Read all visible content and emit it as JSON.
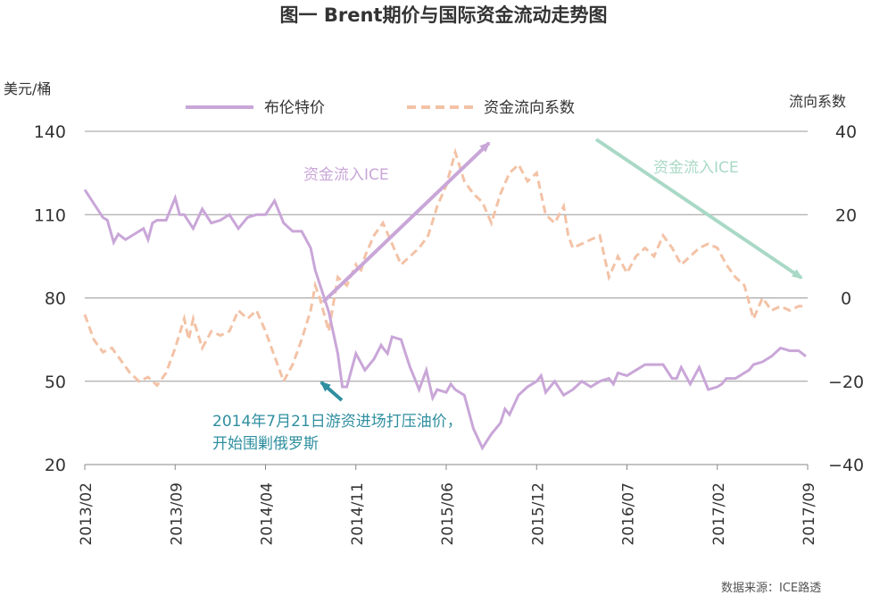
{
  "chart_data": {
    "type": "line",
    "title": "图一 Brent期价与国际资金流动走势图",
    "ylabel_left": "美元/桶",
    "ylabel_right": "流向系数",
    "ylim_left": [
      20,
      140
    ],
    "ylim_right": [
      -40,
      40
    ],
    "y_ticks_left": [
      140,
      110,
      80,
      50,
      20
    ],
    "y_ticks_right": [
      40,
      20,
      0,
      -20,
      -40
    ],
    "x_tick_labels": [
      "2013/02",
      "2013/09",
      "2014/04",
      "2014/11",
      "2015/06",
      "2015/12",
      "2016/07",
      "2017/02",
      "2017/09"
    ],
    "x_index_range": [
      0,
      8
    ],
    "grid": "horizontal",
    "legend": {
      "placement": "top",
      "entries": [
        "布伦特价",
        "资金流向系数"
      ]
    },
    "series": [
      {
        "name": "布伦特价",
        "axis": "left",
        "color": "#c9a6d8",
        "style": "solid",
        "x": [
          0.0,
          0.1,
          0.2,
          0.25,
          0.32,
          0.37,
          0.45,
          0.55,
          0.65,
          0.7,
          0.75,
          0.8,
          0.9,
          1.0,
          1.05,
          1.1,
          1.2,
          1.3,
          1.4,
          1.5,
          1.6,
          1.7,
          1.8,
          1.9,
          2.0,
          2.1,
          2.2,
          2.3,
          2.4,
          2.5,
          2.55,
          2.6,
          2.7,
          2.8,
          2.85,
          2.9,
          3.0,
          3.1,
          3.2,
          3.28,
          3.3,
          3.35,
          3.4,
          3.5,
          3.55,
          3.6,
          3.65,
          3.7,
          3.78,
          3.85,
          3.9,
          4.0,
          4.05,
          4.1,
          4.2,
          4.3,
          4.4,
          4.5,
          4.6,
          4.65,
          4.7,
          4.8,
          4.9,
          5.0,
          5.05,
          5.1,
          5.2,
          5.3,
          5.4,
          5.5,
          5.6,
          5.7,
          5.8,
          5.85,
          5.9,
          6.0,
          6.1,
          6.2,
          6.3,
          6.35,
          6.4,
          6.5,
          6.55,
          6.6,
          6.7,
          6.8,
          6.9,
          7.0,
          7.05,
          7.1,
          7.2,
          7.3,
          7.35,
          7.4,
          7.5,
          7.6,
          7.7,
          7.8,
          7.9,
          7.98
        ],
        "values": [
          119,
          114,
          109,
          108,
          100,
          103,
          101,
          103,
          105,
          101,
          107,
          108,
          108,
          116,
          110,
          110,
          105,
          112,
          107,
          108,
          110,
          105,
          109,
          110,
          110,
          115,
          107,
          104,
          104,
          98,
          90,
          85,
          75,
          60,
          48,
          48,
          60,
          54,
          58,
          63,
          62,
          60,
          66,
          65,
          60,
          55,
          51,
          47,
          54,
          44,
          47,
          46,
          49,
          47,
          45,
          33,
          26,
          31,
          35,
          40,
          38,
          45,
          48,
          50,
          52,
          46,
          50,
          45,
          47,
          50,
          48,
          50,
          51,
          49,
          53,
          52,
          54,
          56,
          56,
          56,
          56,
          51,
          51,
          55,
          49,
          55,
          47,
          48,
          49,
          51,
          51,
          53,
          54,
          56,
          57,
          59,
          62,
          61,
          61,
          59
        ]
      },
      {
        "name": "资金流向系数",
        "axis": "right",
        "color": "#f3c2a6",
        "style": "dashed",
        "x": [
          0.0,
          0.1,
          0.2,
          0.3,
          0.4,
          0.5,
          0.6,
          0.7,
          0.8,
          0.9,
          1.0,
          1.1,
          1.15,
          1.2,
          1.3,
          1.4,
          1.5,
          1.6,
          1.7,
          1.8,
          1.9,
          2.0,
          2.1,
          2.2,
          2.3,
          2.4,
          2.5,
          2.55,
          2.6,
          2.7,
          2.8,
          2.9,
          3.0,
          3.05,
          3.1,
          3.2,
          3.3,
          3.4,
          3.5,
          3.6,
          3.7,
          3.8,
          3.9,
          4.0,
          4.1,
          4.2,
          4.3,
          4.4,
          4.5,
          4.6,
          4.7,
          4.8,
          4.9,
          5.0,
          5.1,
          5.2,
          5.3,
          5.35,
          5.4,
          5.5,
          5.6,
          5.7,
          5.8,
          5.9,
          6.0,
          6.1,
          6.2,
          6.3,
          6.4,
          6.5,
          6.6,
          6.7,
          6.8,
          6.9,
          7.0,
          7.1,
          7.2,
          7.3,
          7.4,
          7.5,
          7.6,
          7.7,
          7.8,
          7.9,
          7.98
        ],
        "values": [
          -4,
          -10,
          -13,
          -12,
          -15,
          -18,
          -20,
          -19,
          -21,
          -18,
          -12,
          -5,
          -10,
          -5,
          -12,
          -8,
          -9,
          -8,
          -3,
          -5,
          -3,
          -8,
          -14,
          -20,
          -16,
          -10,
          -3,
          3,
          0,
          -8,
          5,
          3,
          8,
          6,
          10,
          15,
          18,
          13,
          8,
          10,
          12,
          15,
          22,
          27,
          35,
          28,
          25,
          23,
          18,
          25,
          30,
          32,
          28,
          30,
          20,
          18,
          22,
          15,
          12,
          13,
          14,
          15,
          5,
          10,
          6,
          10,
          12,
          10,
          15,
          12,
          8,
          10,
          12,
          13,
          12,
          8,
          5,
          3,
          -5,
          0,
          -3,
          -2,
          -3,
          -2,
          -2
        ]
      }
    ],
    "annotations": {
      "arrow_inflow_1": "资金流入ICE",
      "arrow_outflow": "资金流入ICE",
      "event_line1": "2014年7月21日游资进场打压油价，",
      "event_line2": "开始围剿俄罗斯"
    },
    "source": "数据来源：ICE路透"
  }
}
